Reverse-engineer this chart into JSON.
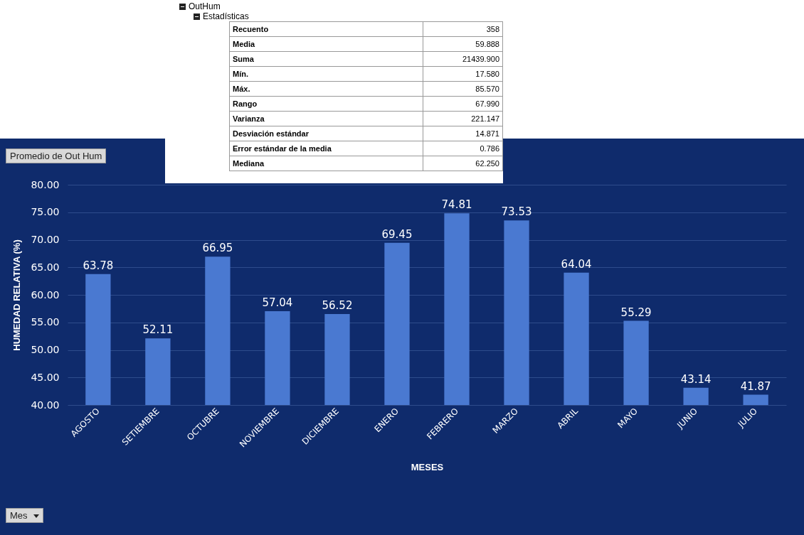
{
  "chart_data": [
    {
      "type": "other",
      "title": "OutHum",
      "subtitle": "Estadísticas",
      "annotations": [
        "Recuento",
        "358",
        "Media",
        "59.888",
        "Suma",
        "21439.900",
        "Mín.",
        "17.580",
        "Máx.",
        "85.570",
        "Rango",
        "67.990",
        "Varianza",
        "221.147",
        "Desviación estándar",
        "14.871",
        "Error estándar de la media",
        "0.786",
        "Mediana",
        "62.250"
      ]
    },
    {
      "type": "bar",
      "categories": [
        "AGOSTO",
        "SETIEMBRE",
        "OCTUBRE",
        "NOVIEMBRE",
        "DICIEMBRE",
        "ENERO",
        "FEBRERO",
        "MARZO",
        "ABRIL",
        "MAYO",
        "JUNIO",
        "JULIO"
      ],
      "values": [
        63.78,
        52.11,
        66.95,
        57.04,
        56.52,
        69.45,
        74.81,
        73.53,
        64.04,
        55.29,
        43.14,
        41.87
      ],
      "color": "#4a79d1",
      "xlabel": "MESES",
      "ylabel": "HUMEDAD RELATIVA (%)",
      "ylim": [
        40,
        80
      ],
      "yticks": [
        {
          "value": 40,
          "label": "40.00"
        },
        {
          "value": 45,
          "label": "45.00"
        },
        {
          "value": 50,
          "label": "50.00"
        },
        {
          "value": 55,
          "label": "55.00"
        },
        {
          "value": 60,
          "label": "60.00"
        },
        {
          "value": 65,
          "label": "65.00"
        },
        {
          "value": 70,
          "label": "70.00"
        },
        {
          "value": 75,
          "label": "75.00"
        },
        {
          "value": 80,
          "label": "80.00"
        }
      ],
      "grid": "y",
      "data_labels": true,
      "annotations": [
        "Promedio de Out Hum",
        "Mes"
      ]
    }
  ]
}
